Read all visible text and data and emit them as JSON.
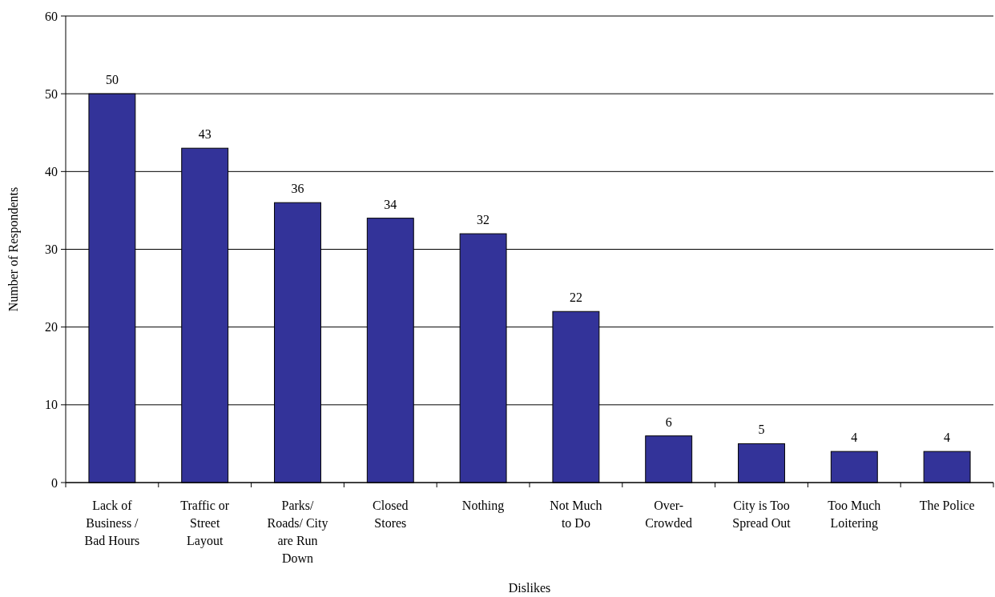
{
  "chart_data": {
    "type": "bar",
    "xlabel": "Dislikes",
    "ylabel": "Number of Respondents",
    "categories": [
      "Lack of\nBusiness /\nBad Hours",
      "Traffic or\nStreet\nLayout",
      "Parks/\nRoads/ City\nare Run\nDown",
      "Closed\nStores",
      "Nothing",
      "Not Much\nto Do",
      "Over-\nCrowded",
      "City is Too\nSpread Out",
      "Too Much\nLoitering",
      "The Police"
    ],
    "values": [
      50,
      43,
      36,
      34,
      32,
      22,
      6,
      5,
      4,
      4
    ],
    "color": "#333399",
    "ylim": [
      0,
      60
    ],
    "yticks": [
      0,
      10,
      20,
      30,
      40,
      50,
      60
    ],
    "grid": "y",
    "data_labels": true
  }
}
